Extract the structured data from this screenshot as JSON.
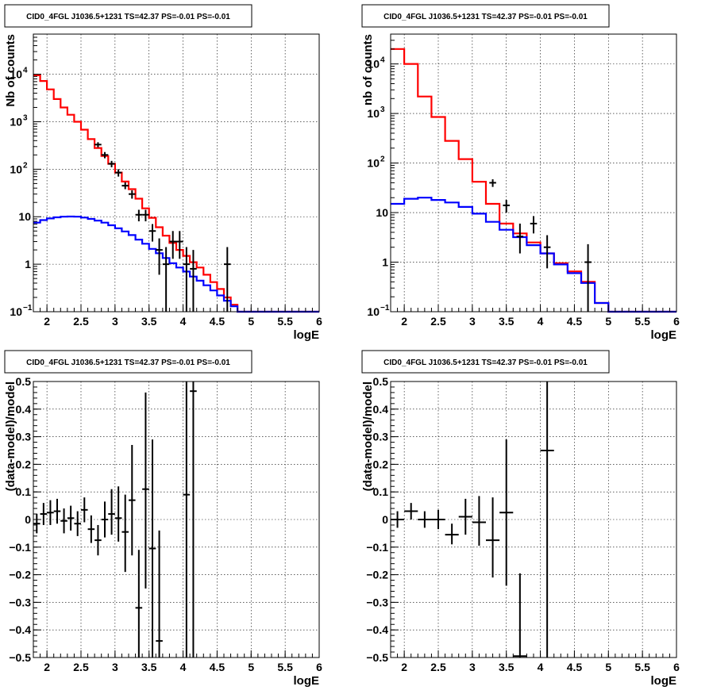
{
  "chart_data": [
    {
      "id": "top-left",
      "type": "line",
      "title": "CID0_4FGL J1036.5+1231 TS=42.37 PS=-0.01 PS=-0.01",
      "xlabel": "logE",
      "ylabel": "Nb of counts",
      "xlim": [
        1.8,
        6.0
      ],
      "ylim": [
        0.1,
        70000
      ],
      "ylog": true,
      "grid": true,
      "x_ticks": [
        2,
        2.5,
        3,
        3.5,
        4,
        4.5,
        5,
        5.5,
        6
      ],
      "x_tick_labels": [
        "2",
        "2.5",
        "3",
        "3.5",
        "4",
        "4.5",
        "5",
        "5.5",
        "6"
      ],
      "y_ticks": [
        0.1,
        1,
        10,
        100,
        1000,
        10000
      ],
      "y_tick_labels": [
        {
          "base": "10",
          "exp": "−1"
        },
        {
          "base": "1",
          "exp": ""
        },
        {
          "base": "10",
          "exp": ""
        },
        {
          "base": "10",
          "exp": "2"
        },
        {
          "base": "10",
          "exp": "3"
        },
        {
          "base": "10",
          "exp": "4"
        }
      ],
      "bin_edges": [
        1.8,
        1.9,
        2.0,
        2.1,
        2.2,
        2.3,
        2.4,
        2.5,
        2.6,
        2.7,
        2.8,
        2.9,
        3.0,
        3.1,
        3.2,
        3.3,
        3.4,
        3.5,
        3.6,
        3.7,
        3.8,
        3.9,
        4.0,
        4.1,
        4.2,
        4.3,
        4.4,
        4.5,
        4.6,
        4.7,
        4.8,
        4.9,
        5.0,
        5.1,
        5.2,
        5.3,
        5.4,
        5.5,
        5.6,
        5.7,
        5.8,
        5.9,
        6.0
      ],
      "series": [
        {
          "color": "#ff0000",
          "values": [
            9500,
            7200,
            4800,
            3000,
            2000,
            1400,
            1000,
            680,
            430,
            280,
            190,
            130,
            85,
            55,
            38,
            24,
            15,
            9.5,
            6.0,
            4.0,
            2.8,
            2.0,
            1.5,
            1.1,
            0.85,
            0.6,
            0.42,
            0.3,
            0.2,
            0.14,
            0.1,
            0.1,
            0.1,
            0.1,
            0.1,
            0.1,
            0.1,
            0.1,
            0.1,
            0.1,
            0.1,
            0.1
          ]
        },
        {
          "color": "#0000ff",
          "values": [
            7.5,
            8.5,
            9.2,
            9.7,
            10.0,
            10.1,
            10.0,
            9.6,
            9.0,
            8.3,
            7.5,
            6.6,
            5.7,
            4.9,
            4.1,
            3.3,
            2.7,
            2.1,
            1.7,
            1.35,
            1.05,
            0.85,
            0.7,
            0.55,
            0.45,
            0.36,
            0.28,
            0.22,
            0.17,
            0.13,
            0.1,
            0.1,
            0.1,
            0.1,
            0.1,
            0.1,
            0.1,
            0.1,
            0.1,
            0.1,
            0.1,
            0.1
          ]
        }
      ],
      "points": [
        {
          "x": 2.75,
          "y": 330,
          "ylo": 290,
          "yhi": 370
        },
        {
          "x": 2.85,
          "y": 200,
          "ylo": 170,
          "yhi": 230
        },
        {
          "x": 2.95,
          "y": 130,
          "ylo": 110,
          "yhi": 150
        },
        {
          "x": 3.05,
          "y": 85,
          "ylo": 70,
          "yhi": 100
        },
        {
          "x": 3.15,
          "y": 45,
          "ylo": 38,
          "yhi": 53
        },
        {
          "x": 3.25,
          "y": 30,
          "ylo": 24,
          "yhi": 36
        },
        {
          "x": 3.35,
          "y": 11,
          "ylo": 8,
          "yhi": 14
        },
        {
          "x": 3.45,
          "y": 11,
          "ylo": 8,
          "yhi": 14
        },
        {
          "x": 3.55,
          "y": 5,
          "ylo": 3,
          "yhi": 7
        },
        {
          "x": 3.65,
          "y": 2,
          "ylo": 0.6,
          "yhi": 3.5
        },
        {
          "x": 3.75,
          "y": 1,
          "ylo": 0.1,
          "yhi": 2.3
        },
        {
          "x": 3.85,
          "y": 3,
          "ylo": 1.3,
          "yhi": 5
        },
        {
          "x": 3.95,
          "y": 3,
          "ylo": 1.3,
          "yhi": 5
        },
        {
          "x": 4.05,
          "y": 1,
          "ylo": 0.1,
          "yhi": 2.3
        },
        {
          "x": 4.15,
          "y": 0.8,
          "ylo": 0.1,
          "yhi": 2.0
        },
        {
          "x": 4.65,
          "y": 1,
          "ylo": 0.1,
          "yhi": 2.3
        }
      ]
    },
    {
      "id": "top-right",
      "type": "line",
      "title": "CID0_4FGL J1036.5+1231 TS=42.37 PS=-0.01 PS=-0.01",
      "xlabel": "logE",
      "ylabel": "nb of counts",
      "xlim": [
        1.8,
        6.0
      ],
      "ylim": [
        0.1,
        40000
      ],
      "ylog": true,
      "grid": true,
      "x_ticks": [
        2,
        2.5,
        3,
        3.5,
        4,
        4.5,
        5,
        5.5,
        6
      ],
      "x_tick_labels": [
        "2",
        "2.5",
        "3",
        "3.5",
        "4",
        "4.5",
        "5",
        "5.5",
        "6"
      ],
      "y_ticks": [
        0.1,
        1,
        10,
        100,
        1000,
        10000
      ],
      "y_tick_labels": [
        {
          "base": "10",
          "exp": "−1"
        },
        {
          "base": "1",
          "exp": ""
        },
        {
          "base": "10",
          "exp": ""
        },
        {
          "base": "10",
          "exp": "2"
        },
        {
          "base": "10",
          "exp": "3"
        },
        {
          "base": "10",
          "exp": "4"
        }
      ],
      "bin_edges": [
        1.8,
        2.0,
        2.2,
        2.4,
        2.6,
        2.8,
        3.0,
        3.2,
        3.4,
        3.6,
        3.8,
        4.0,
        4.2,
        4.4,
        4.6,
        4.8,
        5.0,
        5.2,
        5.4,
        5.6,
        5.8,
        6.0
      ],
      "series": [
        {
          "color": "#ff0000",
          "values": [
            20000,
            10000,
            2200,
            850,
            280,
            120,
            42,
            15,
            6,
            3.8,
            2.5,
            1.5,
            0.95,
            0.65,
            0.4,
            0.15,
            0.1,
            0.1,
            0.1,
            0.1,
            0.1
          ]
        },
        {
          "color": "#0000ff",
          "values": [
            15,
            19,
            20,
            18,
            16,
            13,
            9.5,
            6.5,
            4.5,
            3.2,
            2.2,
            1.5,
            0.9,
            0.6,
            0.38,
            0.15,
            0.1,
            0.1,
            0.1,
            0.1,
            0.1
          ]
        }
      ],
      "points": [
        {
          "x": 3.3,
          "y": 40,
          "ylo": 33,
          "yhi": 47
        },
        {
          "x": 3.5,
          "y": 14,
          "ylo": 10,
          "yhi": 18
        },
        {
          "x": 3.7,
          "y": 3.3,
          "ylo": 1.5,
          "yhi": 6
        },
        {
          "x": 3.9,
          "y": 6,
          "ylo": 3.8,
          "yhi": 8.5
        },
        {
          "x": 4.1,
          "y": 2,
          "ylo": 0.75,
          "yhi": 3.5
        },
        {
          "x": 4.7,
          "y": 1,
          "ylo": 0.1,
          "yhi": 2.3
        }
      ]
    },
    {
      "id": "bottom-left",
      "type": "scatter",
      "title": "CID0_4FGL J1036.5+1231 TS=42.37 PS=-0.01 PS=-0.01",
      "xlabel": "logE",
      "ylabel": "(data-model)/model",
      "xlim": [
        1.8,
        6.0
      ],
      "ylim": [
        -0.5,
        0.5
      ],
      "ylog": false,
      "grid": true,
      "x_ticks": [
        2,
        2.5,
        3,
        3.5,
        4,
        4.5,
        5,
        5.5,
        6
      ],
      "x_tick_labels": [
        "2",
        "2.5",
        "3",
        "3.5",
        "4",
        "4.5",
        "5",
        "5.5",
        "6"
      ],
      "y_ticks": [
        -0.5,
        -0.4,
        -0.3,
        -0.2,
        -0.1,
        0,
        0.1,
        0.2,
        0.3,
        0.4,
        0.5
      ],
      "y_tick_labels": [
        "−0.5",
        "−0.4",
        "−0.3",
        "−0.2",
        "−0.1",
        "0",
        "0.1",
        "0.2",
        "0.3",
        "0.4",
        "0.5"
      ],
      "half_width": 0.05,
      "points": [
        {
          "x": 1.85,
          "y": -0.015,
          "ylo": -0.05,
          "yhi": 0.02
        },
        {
          "x": 1.95,
          "y": 0.02,
          "ylo": -0.02,
          "yhi": 0.06
        },
        {
          "x": 2.05,
          "y": 0.025,
          "ylo": -0.02,
          "yhi": 0.07
        },
        {
          "x": 2.15,
          "y": 0.03,
          "ylo": -0.015,
          "yhi": 0.075
        },
        {
          "x": 2.25,
          "y": -0.005,
          "ylo": -0.05,
          "yhi": 0.04
        },
        {
          "x": 2.35,
          "y": 0.005,
          "ylo": -0.04,
          "yhi": 0.05
        },
        {
          "x": 2.45,
          "y": -0.015,
          "ylo": -0.06,
          "yhi": 0.03
        },
        {
          "x": 2.55,
          "y": 0.035,
          "ylo": -0.01,
          "yhi": 0.08
        },
        {
          "x": 2.65,
          "y": -0.035,
          "ylo": -0.085,
          "yhi": 0.015
        },
        {
          "x": 2.75,
          "y": -0.075,
          "ylo": -0.13,
          "yhi": -0.02
        },
        {
          "x": 2.85,
          "y": 0.0,
          "ylo": -0.065,
          "yhi": 0.065
        },
        {
          "x": 2.95,
          "y": 0.02,
          "ylo": -0.055,
          "yhi": 0.11
        },
        {
          "x": 3.05,
          "y": 0.005,
          "ylo": -0.08,
          "yhi": 0.12
        },
        {
          "x": 3.15,
          "y": -0.045,
          "ylo": -0.19,
          "yhi": 0.09
        },
        {
          "x": 3.25,
          "y": 0.07,
          "ylo": -0.13,
          "yhi": 0.27
        },
        {
          "x": 3.35,
          "y": -0.32,
          "ylo": -0.5,
          "yhi": -0.11
        },
        {
          "x": 3.45,
          "y": 0.11,
          "ylo": -0.25,
          "yhi": 0.46
        },
        {
          "x": 3.55,
          "y": -0.105,
          "ylo": -0.5,
          "yhi": 0.29
        },
        {
          "x": 3.65,
          "y": -0.44,
          "ylo": -0.5,
          "yhi": -0.04
        },
        {
          "x": 4.05,
          "y": 0.09,
          "ylo": -0.5,
          "yhi": 0.5
        },
        {
          "x": 4.15,
          "y": 0.465,
          "ylo": -0.5,
          "yhi": 0.5
        }
      ]
    },
    {
      "id": "bottom-right",
      "type": "scatter",
      "title": "CID0_4FGL J1036.5+1231 TS=42.37 PS=-0.01 PS=-0.01",
      "xlabel": "logE",
      "ylabel": "(data-model)/model",
      "xlim": [
        1.8,
        6.0
      ],
      "ylim": [
        -0.5,
        0.5
      ],
      "ylog": false,
      "grid": true,
      "x_ticks": [
        2,
        2.5,
        3,
        3.5,
        4,
        4.5,
        5,
        5.5,
        6
      ],
      "x_tick_labels": [
        "2",
        "2.5",
        "3",
        "3.5",
        "4",
        "4.5",
        "5",
        "5.5",
        "6"
      ],
      "y_ticks": [
        -0.5,
        -0.4,
        -0.3,
        -0.2,
        -0.1,
        0,
        0.1,
        0.2,
        0.3,
        0.4,
        0.5
      ],
      "y_tick_labels": [
        "−0.5",
        "−0.4",
        "−0.3",
        "−0.2",
        "−0.1",
        "0",
        "0.1",
        "0.2",
        "0.3",
        "0.4",
        "0.5"
      ],
      "half_width": 0.1,
      "points": [
        {
          "x": 1.9,
          "y": 0.0,
          "ylo": -0.03,
          "yhi": 0.03
        },
        {
          "x": 2.1,
          "y": 0.03,
          "ylo": 0.0,
          "yhi": 0.06
        },
        {
          "x": 2.3,
          "y": 0.0,
          "ylo": -0.03,
          "yhi": 0.03
        },
        {
          "x": 2.5,
          "y": 0.0,
          "ylo": -0.035,
          "yhi": 0.035
        },
        {
          "x": 2.7,
          "y": -0.055,
          "ylo": -0.09,
          "yhi": -0.015
        },
        {
          "x": 2.9,
          "y": 0.01,
          "ylo": -0.055,
          "yhi": 0.075
        },
        {
          "x": 3.1,
          "y": -0.01,
          "ylo": -0.095,
          "yhi": 0.085
        },
        {
          "x": 3.3,
          "y": -0.075,
          "ylo": -0.21,
          "yhi": 0.08
        },
        {
          "x": 3.5,
          "y": 0.025,
          "ylo": -0.24,
          "yhi": 0.29
        },
        {
          "x": 3.7,
          "y": -0.495,
          "ylo": -0.5,
          "yhi": -0.195
        },
        {
          "x": 4.1,
          "y": 0.25,
          "ylo": -0.5,
          "yhi": 0.5
        }
      ]
    }
  ]
}
